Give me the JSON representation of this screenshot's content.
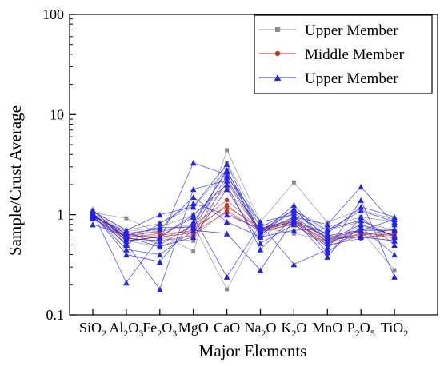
{
  "chart_data": {
    "type": "line",
    "xlabel": "Major Elements",
    "ylabel": "Sample/Crust Average",
    "y_scale": "log",
    "ylim": [
      0.1,
      100
    ],
    "y_ticks": [
      "0.1",
      "1",
      "10",
      "100"
    ],
    "grid": false,
    "legend_position": "top-right",
    "categories": [
      {
        "base": "SiO",
        "sub": "2",
        "tail": "",
        "sub2": ""
      },
      {
        "base": "Al",
        "sub": "2",
        "tail": "O",
        "sub2": "3"
      },
      {
        "base": "Fe",
        "sub": "2",
        "tail": "O",
        "sub2": "3"
      },
      {
        "base": "MgO",
        "sub": "",
        "tail": "",
        "sub2": ""
      },
      {
        "base": "CaO",
        "sub": "",
        "tail": "",
        "sub2": ""
      },
      {
        "base": "Na",
        "sub": "2",
        "tail": "O",
        "sub2": ""
      },
      {
        "base": "K",
        "sub": "2",
        "tail": "O",
        "sub2": ""
      },
      {
        "base": "MnO",
        "sub": "",
        "tail": "",
        "sub2": ""
      },
      {
        "base": "P",
        "sub": "2",
        "tail": "O",
        "sub2": "5"
      },
      {
        "base": "TiO",
        "sub": "2",
        "tail": "",
        "sub2": ""
      }
    ],
    "groups": [
      {
        "name": "Upper Member",
        "color": "#8c8c8c",
        "marker": "square",
        "samples": [
          [
            1.05,
            0.92,
            0.65,
            0.43,
            4.4,
            0.85,
            2.1,
            0.84,
            1.12,
            0.9
          ],
          [
            1.0,
            0.6,
            0.7,
            0.8,
            0.18,
            0.75,
            0.65,
            0.55,
            0.7,
            0.28
          ],
          [
            1.1,
            0.7,
            0.82,
            1.2,
            2.8,
            0.6,
            0.95,
            0.7,
            0.85,
            0.7
          ],
          [
            0.95,
            0.55,
            0.48,
            0.65,
            3.3,
            0.8,
            0.8,
            0.62,
            0.6,
            0.55
          ],
          [
            1.02,
            0.68,
            0.75,
            1.0,
            1.8,
            0.7,
            1.1,
            0.75,
            0.95,
            0.85
          ],
          [
            0.98,
            0.62,
            0.58,
            0.55,
            2.3,
            0.65,
            0.9,
            0.5,
            0.78,
            0.62
          ]
        ]
      },
      {
        "name": "Middle Member",
        "color": "#c0392b",
        "marker": "circle",
        "samples": [
          [
            1.0,
            0.6,
            0.62,
            0.7,
            1.25,
            0.7,
            0.85,
            0.55,
            0.65,
            0.62
          ],
          [
            1.03,
            0.58,
            0.55,
            0.62,
            1.1,
            0.68,
            0.8,
            0.5,
            0.58,
            0.66
          ],
          [
            0.97,
            0.62,
            0.68,
            0.78,
            1.4,
            0.72,
            0.9,
            0.58,
            0.7,
            0.7
          ],
          [
            1.01,
            0.55,
            0.6,
            0.66,
            2.1,
            0.66,
            0.83,
            0.52,
            0.62,
            0.6
          ],
          [
            0.99,
            0.64,
            0.58,
            0.74,
            1.2,
            0.74,
            0.88,
            0.6,
            0.68,
            0.58
          ],
          [
            1.02,
            0.59,
            0.65,
            0.68,
            1.05,
            0.69,
            0.86,
            0.54,
            0.64,
            0.64
          ]
        ]
      },
      {
        "name": "Upper Member",
        "color": "#2222ee",
        "marker": "triangle",
        "samples": [
          [
            1.1,
            0.58,
            0.55,
            3.3,
            2.5,
            0.68,
            0.95,
            0.8,
            1.9,
            0.8
          ],
          [
            1.05,
            0.21,
            0.6,
            0.95,
            0.24,
            0.8,
            0.32,
            0.45,
            1.4,
            0.24
          ],
          [
            0.95,
            0.52,
            0.18,
            1.8,
            2.2,
            0.7,
            1.05,
            0.62,
            0.7,
            0.9
          ],
          [
            1.0,
            0.45,
            0.4,
            0.7,
            0.65,
            0.28,
            0.9,
            0.38,
            0.95,
            0.5
          ],
          [
            1.08,
            0.7,
            1.0,
            1.2,
            3.2,
            0.65,
            1.25,
            0.55,
            0.8,
            0.62
          ],
          [
            0.92,
            0.6,
            0.48,
            0.6,
            1.8,
            0.52,
            0.8,
            0.48,
            0.62,
            0.72
          ],
          [
            1.02,
            0.4,
            0.34,
            0.85,
            2.7,
            0.75,
            1.1,
            0.7,
            1.1,
            0.85
          ],
          [
            0.98,
            0.65,
            0.72,
            1.5,
            0.85,
            0.6,
            0.7,
            0.72,
            0.88,
            0.6
          ],
          [
            1.12,
            0.55,
            0.6,
            1.0,
            2.0,
            0.45,
            0.95,
            0.58,
            0.6,
            0.55
          ],
          [
            0.8,
            0.62,
            0.75,
            0.75,
            2.4,
            0.85,
            1.0,
            0.42,
            0.75,
            0.4
          ],
          [
            1.05,
            0.5,
            0.82,
            1.3,
            1.0,
            0.72,
            0.85,
            0.65,
            1.2,
            0.95
          ],
          [
            0.96,
            0.68,
            0.5,
            0.8,
            2.8,
            0.62,
            1.15,
            0.52,
            0.7,
            0.7
          ]
        ]
      }
    ]
  }
}
